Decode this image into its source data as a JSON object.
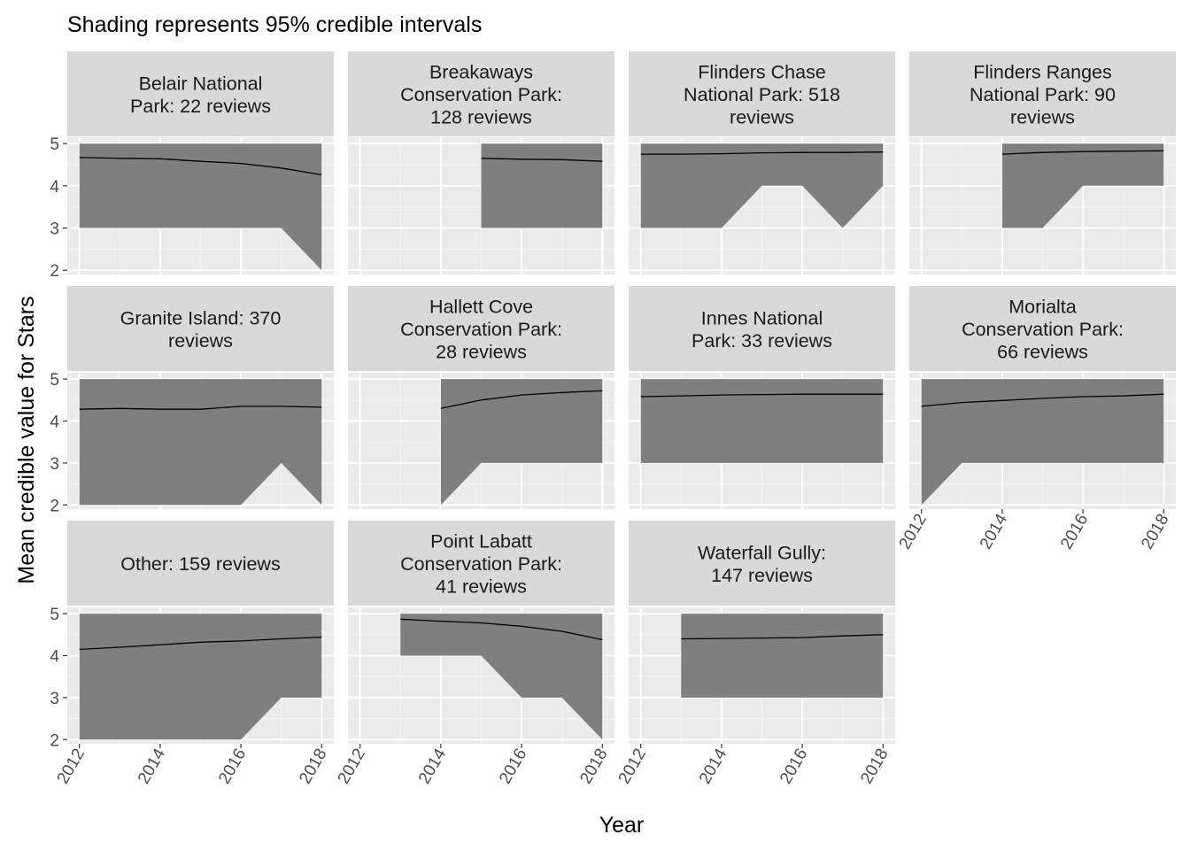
{
  "chart_data": {
    "type": "area",
    "title": "Shading represents 95% credible intervals",
    "xlabel": "Year",
    "ylabel": "Mean credible value for Stars",
    "xlim": [
      2011.7,
      2018.3
    ],
    "ylim": [
      1.9,
      5.15
    ],
    "x_ticks": [
      2012,
      2014,
      2016,
      2018
    ],
    "y_ticks": [
      2,
      3,
      4,
      5
    ],
    "x_tick_labels": [
      "2012",
      "2014",
      "2016",
      "2018"
    ],
    "y_tick_labels": [
      "2",
      "3",
      "4",
      "5"
    ],
    "grid": true,
    "ribbon_color": "#7f7f7f",
    "panel_background": "#ebebeb",
    "strip_background": "#d9d9d9",
    "facets": [
      {
        "label": "Belair National\nPark: 22 reviews",
        "x": [
          2012,
          2013,
          2014,
          2015,
          2016,
          2017,
          2018
        ],
        "mean": [
          4.67,
          4.65,
          4.64,
          4.58,
          4.53,
          4.42,
          4.26
        ],
        "lower": [
          3,
          3,
          3,
          3,
          3,
          3,
          2
        ],
        "upper": [
          5,
          5,
          5,
          5,
          5,
          5,
          5
        ]
      },
      {
        "label": "Breakaways\nConservation Park:\n128 reviews",
        "x": [
          2015,
          2016,
          2017,
          2018
        ],
        "mean": [
          4.65,
          4.63,
          4.62,
          4.58
        ],
        "lower": [
          3,
          3,
          3,
          3
        ],
        "upper": [
          5,
          5,
          5,
          5
        ]
      },
      {
        "label": "Flinders Chase\nNational Park: 518\nreviews",
        "x": [
          2012,
          2013,
          2014,
          2015,
          2016,
          2017,
          2018
        ],
        "mean": [
          4.75,
          4.75,
          4.76,
          4.78,
          4.79,
          4.79,
          4.8
        ],
        "lower": [
          3,
          3,
          3,
          4,
          4,
          3,
          4
        ],
        "upper": [
          5,
          5,
          5,
          5,
          5,
          5,
          5
        ]
      },
      {
        "label": "Flinders Ranges\nNational Park: 90\nreviews",
        "x": [
          2014,
          2015,
          2016,
          2017,
          2018
        ],
        "mean": [
          4.75,
          4.79,
          4.81,
          4.82,
          4.83
        ],
        "lower": [
          3,
          3,
          4,
          4,
          4
        ],
        "upper": [
          5,
          5,
          5,
          5,
          5
        ]
      },
      {
        "label": "Granite Island: 370\nreviews",
        "x": [
          2012,
          2013,
          2014,
          2015,
          2016,
          2017,
          2018
        ],
        "mean": [
          4.28,
          4.3,
          4.28,
          4.28,
          4.35,
          4.35,
          4.33
        ],
        "lower": [
          2,
          2,
          2,
          2,
          2,
          3,
          2
        ],
        "upper": [
          5,
          5,
          5,
          5,
          5,
          5,
          5
        ]
      },
      {
        "label": "Hallett Cove\nConservation Park:\n28 reviews",
        "x": [
          2014,
          2015,
          2016,
          2017,
          2018
        ],
        "mean": [
          4.3,
          4.5,
          4.62,
          4.68,
          4.72
        ],
        "lower": [
          2,
          3,
          3,
          3,
          3
        ],
        "upper": [
          5,
          5,
          5,
          5,
          5
        ]
      },
      {
        "label": "Innes National\nPark: 33 reviews",
        "x": [
          2012,
          2013,
          2014,
          2015,
          2016,
          2017,
          2018
        ],
        "mean": [
          4.58,
          4.6,
          4.62,
          4.63,
          4.64,
          4.64,
          4.64
        ],
        "lower": [
          3,
          3,
          3,
          3,
          3,
          3,
          3
        ],
        "upper": [
          5,
          5,
          5,
          5,
          5,
          5,
          5
        ]
      },
      {
        "label": "Morialta\nConservation Park:\n66 reviews",
        "x": [
          2012,
          2013,
          2014,
          2015,
          2016,
          2017,
          2018
        ],
        "mean": [
          4.35,
          4.44,
          4.49,
          4.54,
          4.58,
          4.6,
          4.64
        ],
        "lower": [
          2,
          3,
          3,
          3,
          3,
          3,
          3
        ],
        "upper": [
          5,
          5,
          5,
          5,
          5,
          5,
          5
        ]
      },
      {
        "label": "Other: 159 reviews",
        "x": [
          2012,
          2013,
          2014,
          2015,
          2016,
          2017,
          2018
        ],
        "mean": [
          4.15,
          4.2,
          4.26,
          4.32,
          4.35,
          4.4,
          4.44
        ],
        "lower": [
          2,
          2,
          2,
          2,
          2,
          3,
          3
        ],
        "upper": [
          5,
          5,
          5,
          5,
          5,
          5,
          5
        ]
      },
      {
        "label": "Point Labatt\nConservation Park:\n41 reviews",
        "x": [
          2013,
          2014,
          2015,
          2016,
          2017,
          2018
        ],
        "mean": [
          4.87,
          4.82,
          4.78,
          4.7,
          4.58,
          4.38
        ],
        "lower": [
          4,
          4,
          4,
          3,
          3,
          2
        ],
        "upper": [
          5,
          5,
          5,
          5,
          5,
          5
        ]
      },
      {
        "label": "Waterfall Gully:\n147 reviews",
        "x": [
          2013,
          2014,
          2015,
          2016,
          2017,
          2018
        ],
        "mean": [
          4.4,
          4.41,
          4.42,
          4.43,
          4.47,
          4.5
        ],
        "lower": [
          3,
          3,
          3,
          3,
          3,
          3
        ],
        "upper": [
          5,
          5,
          5,
          5,
          5,
          5
        ]
      }
    ]
  }
}
